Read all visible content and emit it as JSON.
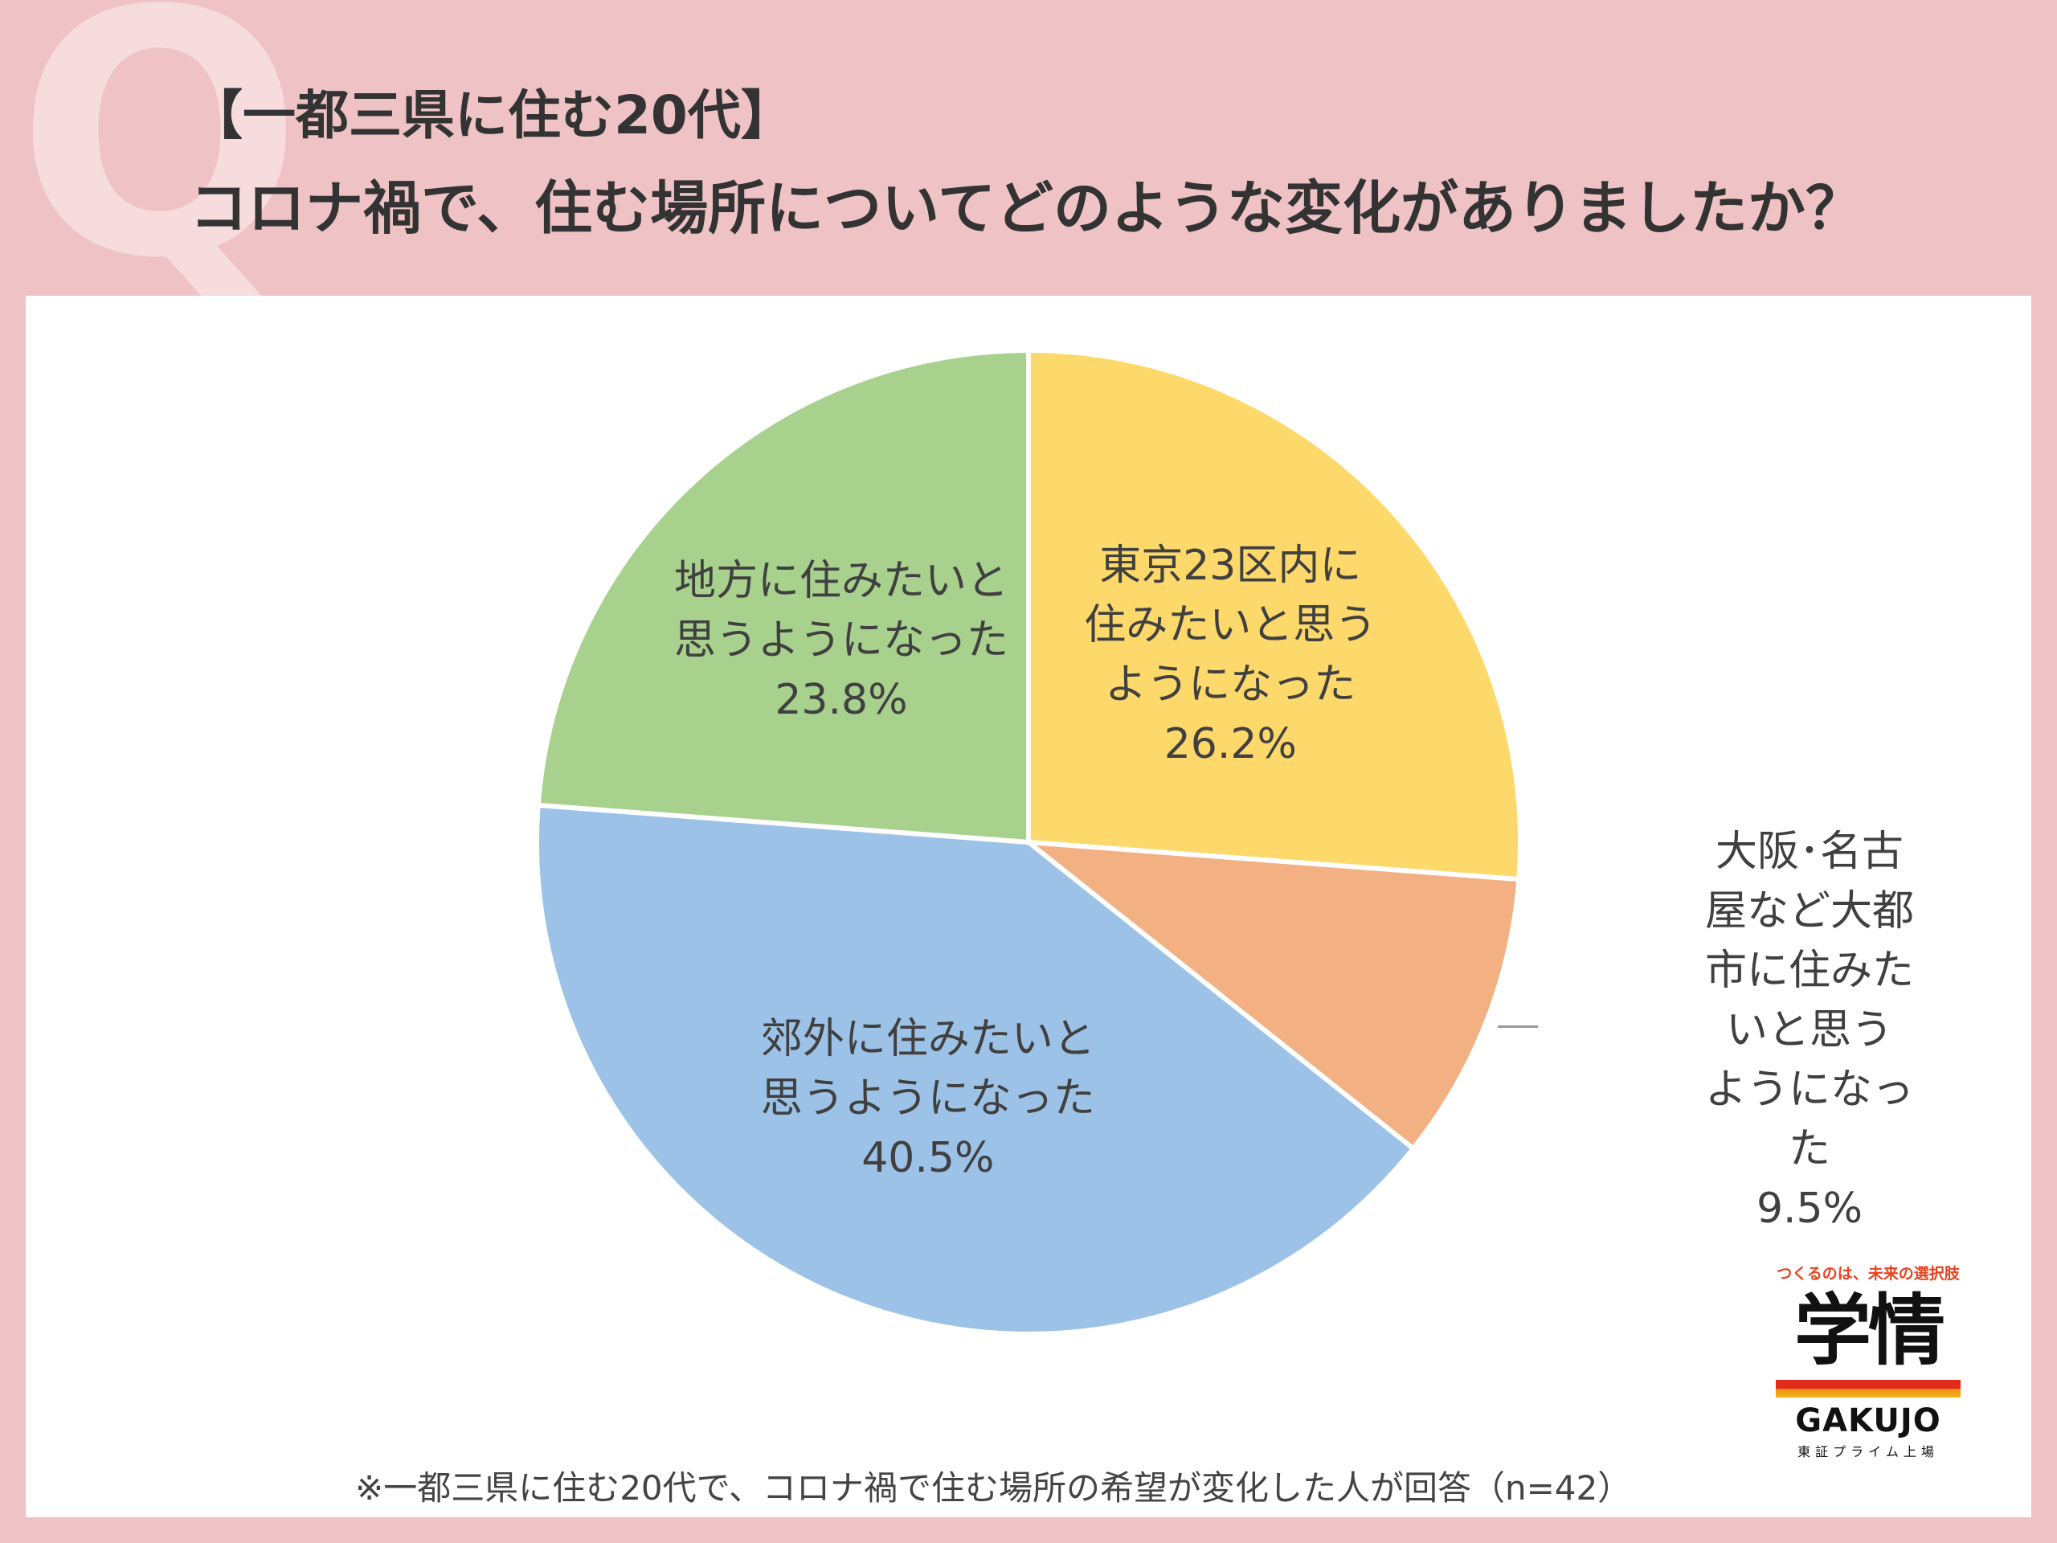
{
  "header": {
    "q_mark": "Q",
    "title_line1": "【一都三県に住む20代】",
    "title_line2": "コロナ禍で、住む場所についてどのような変化がありましたか？"
  },
  "chart_data": {
    "type": "pie",
    "title": "コロナ禍で、住む場所についてどのような変化がありましたか？",
    "start_angle_deg": 0,
    "direction": "clockwise",
    "slices": [
      {
        "label": "東京23区内に\n住みたいと思う\nようになった",
        "value": 26.2,
        "value_label": "26.2%",
        "color": "#fdd86a"
      },
      {
        "label": "大阪･名古屋など大都\n市に住みたいと思う\nようになった",
        "value": 9.5,
        "value_label": "9.5%",
        "color": "#f3b083"
      },
      {
        "label": "郊外に住みたいと\n思うようになった",
        "value": 40.5,
        "value_label": "40.5%",
        "color": "#9dc2e7"
      },
      {
        "label": "地方に住みたいと\n思うようになった",
        "value": 23.8,
        "value_label": "23.8%",
        "color": "#a9d18e"
      }
    ]
  },
  "footnote": "※一都三県に住む20代で、コロナ禍で住む場所の希望が変化した人が回答（n=42）",
  "brand": {
    "tagline": "つくるのは、未来の選択肢",
    "name_kanji": "学情",
    "name_roman": "GAKUJO",
    "listing": "東証プライム上場"
  }
}
